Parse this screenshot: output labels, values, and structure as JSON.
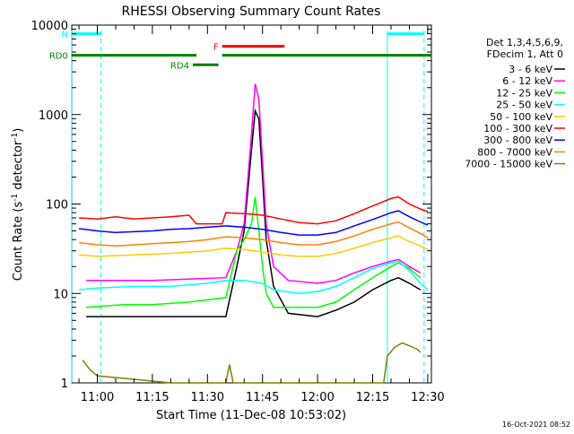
{
  "chart_data": {
    "type": "line",
    "title": "RHESSI Observing Summary Count Rates",
    "xlabel": "Start Time (11-Dec-08 10:53:02)",
    "ylabel": "Count Rate (s",
    "ylabel_sup": "-1",
    "ylabel_tail": " detector",
    "ylabel_end": ")",
    "y_scale": "log",
    "ylim": [
      1,
      10000
    ],
    "xlim": [
      "10:53:02",
      "12:31:00"
    ],
    "x_ticks": [
      "11:00",
      "11:15",
      "11:30",
      "11:45",
      "12:00",
      "12:15",
      "12:30"
    ],
    "y_ticks": [
      {
        "v": 1,
        "label": "1"
      },
      {
        "v": 10,
        "label": "10"
      },
      {
        "v": 100,
        "label": "100"
      },
      {
        "v": 1000,
        "label": "1000"
      },
      {
        "v": 10000,
        "label": "10000"
      }
    ],
    "legend_header": [
      "Det 1,3,4,5,6,9,",
      "FDecim 1, Att 0"
    ],
    "series": [
      {
        "name": "3 - 6 keV",
        "color": "#000000",
        "points": [
          [
            "10:57",
            5.5
          ],
          [
            "11:07",
            5.5
          ],
          [
            "11:15",
            5.5
          ],
          [
            "11:25",
            5.5
          ],
          [
            "11:35",
            5.5
          ],
          [
            "11:38",
            20
          ],
          [
            "11:40",
            50
          ],
          [
            "11:42",
            400
          ],
          [
            "11:43",
            1100
          ],
          [
            "11:44",
            900
          ],
          [
            "11:45",
            200
          ],
          [
            "11:46",
            40
          ],
          [
            "11:48",
            12
          ],
          [
            "11:52",
            6
          ],
          [
            "12:00",
            5.5
          ],
          [
            "12:05",
            6.5
          ],
          [
            "12:10",
            8
          ],
          [
            "12:15",
            11
          ],
          [
            "12:20",
            14
          ],
          [
            "12:22",
            15
          ],
          [
            "12:25",
            13
          ],
          [
            "12:28",
            11
          ]
        ]
      },
      {
        "name": "6 - 12 keV",
        "color": "#ff00ff",
        "points": [
          [
            "10:57",
            14
          ],
          [
            "11:07",
            14
          ],
          [
            "11:15",
            14
          ],
          [
            "11:25",
            14.5
          ],
          [
            "11:35",
            15
          ],
          [
            "11:38",
            30
          ],
          [
            "11:40",
            60
          ],
          [
            "11:42",
            600
          ],
          [
            "11:43",
            2200
          ],
          [
            "11:44",
            1500
          ],
          [
            "11:45",
            300
          ],
          [
            "11:46",
            60
          ],
          [
            "11:48",
            20
          ],
          [
            "11:52",
            14
          ],
          [
            "12:00",
            13
          ],
          [
            "12:05",
            14
          ],
          [
            "12:10",
            17
          ],
          [
            "12:15",
            20
          ],
          [
            "12:20",
            23
          ],
          [
            "12:22",
            24
          ],
          [
            "12:25",
            20
          ],
          [
            "12:28",
            17
          ]
        ]
      },
      {
        "name": "12 - 25 keV",
        "color": "#00ff00",
        "points": [
          [
            "10:57",
            7
          ],
          [
            "11:07",
            7.5
          ],
          [
            "11:15",
            7.5
          ],
          [
            "11:25",
            8
          ],
          [
            "11:35",
            9
          ],
          [
            "11:38",
            30
          ],
          [
            "11:40",
            40
          ],
          [
            "11:42",
            60
          ],
          [
            "11:43",
            120
          ],
          [
            "11:44",
            50
          ],
          [
            "11:45",
            20
          ],
          [
            "11:46",
            10
          ],
          [
            "11:48",
            7
          ],
          [
            "11:52",
            7
          ],
          [
            "12:00",
            7
          ],
          [
            "12:05",
            8
          ],
          [
            "12:10",
            11
          ],
          [
            "12:15",
            15
          ],
          [
            "12:20",
            20
          ],
          [
            "12:22",
            22
          ],
          [
            "12:25",
            19
          ],
          [
            "12:28",
            15
          ]
        ]
      },
      {
        "name": "25 - 50 keV",
        "color": "#00ffff",
        "points": [
          [
            "10:55",
            11
          ],
          [
            "11:00",
            11.5
          ],
          [
            "11:10",
            12
          ],
          [
            "11:20",
            12
          ],
          [
            "11:30",
            13
          ],
          [
            "11:35",
            14
          ],
          [
            "11:40",
            14
          ],
          [
            "11:45",
            13
          ],
          [
            "11:48",
            11
          ],
          [
            "11:55",
            10
          ],
          [
            "12:00",
            10.5
          ],
          [
            "12:05",
            12
          ],
          [
            "12:10",
            15
          ],
          [
            "12:15",
            19
          ],
          [
            "12:20",
            22
          ],
          [
            "12:22",
            23
          ],
          [
            "12:25",
            18
          ],
          [
            "12:28",
            13
          ],
          [
            "12:30",
            11
          ]
        ]
      },
      {
        "name": "50 - 100 keV",
        "color": "#ffcc00",
        "points": [
          [
            "10:55",
            27
          ],
          [
            "11:00",
            26
          ],
          [
            "11:10",
            27
          ],
          [
            "11:20",
            28
          ],
          [
            "11:30",
            30
          ],
          [
            "11:35",
            32
          ],
          [
            "11:40",
            31
          ],
          [
            "11:45",
            29
          ],
          [
            "11:50",
            27
          ],
          [
            "11:55",
            26
          ],
          [
            "12:00",
            26
          ],
          [
            "12:05",
            28
          ],
          [
            "12:10",
            32
          ],
          [
            "12:15",
            37
          ],
          [
            "12:20",
            42
          ],
          [
            "12:22",
            44
          ],
          [
            "12:25",
            38
          ],
          [
            "12:28",
            34
          ],
          [
            "12:30",
            31
          ]
        ]
      },
      {
        "name": "100 - 300 keV",
        "color": "#ff0000",
        "points": [
          [
            "10:55",
            70
          ],
          [
            "11:00",
            68
          ],
          [
            "11:05",
            72
          ],
          [
            "11:10",
            68
          ],
          [
            "11:15",
            70
          ],
          [
            "11:20",
            72
          ],
          [
            "11:25",
            75
          ],
          [
            "11:27",
            60
          ],
          [
            "11:34",
            60
          ],
          [
            "11:35",
            80
          ],
          [
            "11:40",
            78
          ],
          [
            "11:45",
            75
          ],
          [
            "11:50",
            68
          ],
          [
            "11:55",
            62
          ],
          [
            "12:00",
            60
          ],
          [
            "12:05",
            65
          ],
          [
            "12:10",
            78
          ],
          [
            "12:15",
            95
          ],
          [
            "12:20",
            115
          ],
          [
            "12:22",
            120
          ],
          [
            "12:25",
            100
          ],
          [
            "12:28",
            88
          ],
          [
            "12:30",
            82
          ]
        ]
      },
      {
        "name": "300 - 800 keV",
        "color": "#0000ff",
        "points": [
          [
            "10:55",
            53
          ],
          [
            "11:00",
            50
          ],
          [
            "11:05",
            48
          ],
          [
            "11:10",
            49
          ],
          [
            "11:15",
            50
          ],
          [
            "11:20",
            52
          ],
          [
            "11:25",
            53
          ],
          [
            "11:30",
            55
          ],
          [
            "11:35",
            57
          ],
          [
            "11:40",
            55
          ],
          [
            "11:45",
            52
          ],
          [
            "11:50",
            48
          ],
          [
            "11:55",
            45
          ],
          [
            "12:00",
            45
          ],
          [
            "12:05",
            48
          ],
          [
            "12:10",
            57
          ],
          [
            "12:15",
            67
          ],
          [
            "12:20",
            80
          ],
          [
            "12:22",
            84
          ],
          [
            "12:25",
            72
          ],
          [
            "12:28",
            63
          ],
          [
            "12:30",
            58
          ]
        ]
      },
      {
        "name": "800 - 7000 keV",
        "color": "#ff8000",
        "points": [
          [
            "10:55",
            37
          ],
          [
            "11:00",
            35
          ],
          [
            "11:05",
            34
          ],
          [
            "11:10",
            35
          ],
          [
            "11:15",
            36
          ],
          [
            "11:20",
            37
          ],
          [
            "11:25",
            38
          ],
          [
            "11:30",
            40
          ],
          [
            "11:35",
            43
          ],
          [
            "11:40",
            42
          ],
          [
            "11:45",
            40
          ],
          [
            "11:50",
            37
          ],
          [
            "11:55",
            35
          ],
          [
            "12:00",
            35
          ],
          [
            "12:05",
            38
          ],
          [
            "12:10",
            44
          ],
          [
            "12:15",
            52
          ],
          [
            "12:20",
            60
          ],
          [
            "12:22",
            63
          ],
          [
            "12:25",
            54
          ],
          [
            "12:28",
            47
          ],
          [
            "12:30",
            42
          ]
        ]
      },
      {
        "name": "7000 - 15000 keV",
        "color": "#808000",
        "points": [
          [
            "10:56",
            1.8
          ],
          [
            "10:58",
            1.4
          ],
          [
            "11:00",
            1.2
          ],
          [
            "11:20",
            1
          ],
          [
            "11:35",
            1
          ],
          [
            "11:36",
            1.6
          ],
          [
            "11:37",
            1
          ],
          [
            "12:18",
            1
          ],
          [
            "12:19",
            2
          ],
          [
            "12:21",
            2.5
          ],
          [
            "12:23",
            2.8
          ],
          [
            "12:25",
            2.6
          ],
          [
            "12:27",
            2.4
          ],
          [
            "12:28",
            2.2
          ]
        ]
      }
    ],
    "annotations": [
      {
        "label": "N",
        "color": "#00ffff",
        "y": 8000,
        "from": "10:53",
        "to": "11:01"
      },
      {
        "label": "",
        "color": "#00ffff",
        "y": 8000,
        "from": "12:19",
        "to": "12:29"
      },
      {
        "label": "F",
        "color": "#ff0000",
        "y": 5800,
        "from": "11:34",
        "to": "11:51"
      },
      {
        "label": "RD0",
        "color": "#008000",
        "y": 4600,
        "from": "10:53",
        "to": "11:27"
      },
      {
        "label": "",
        "color": "#008000",
        "y": 4600,
        "from": "11:34",
        "to": "12:31"
      },
      {
        "label": "RD4",
        "color": "#008000",
        "y": 3600,
        "from": "11:26",
        "to": "11:33"
      }
    ],
    "vlines": [
      {
        "time": "10:53",
        "color": "#00ffff",
        "style": "solid"
      },
      {
        "time": "11:01",
        "color": "#00ffff",
        "style": "dashed"
      },
      {
        "time": "12:19",
        "color": "#00ffff",
        "style": "solid"
      },
      {
        "time": "12:29",
        "color": "#00ffff",
        "style": "dashed"
      }
    ],
    "footer_timestamp": "16-Oct-2021 08:52",
    "grid": false,
    "legend_placement": "right"
  }
}
